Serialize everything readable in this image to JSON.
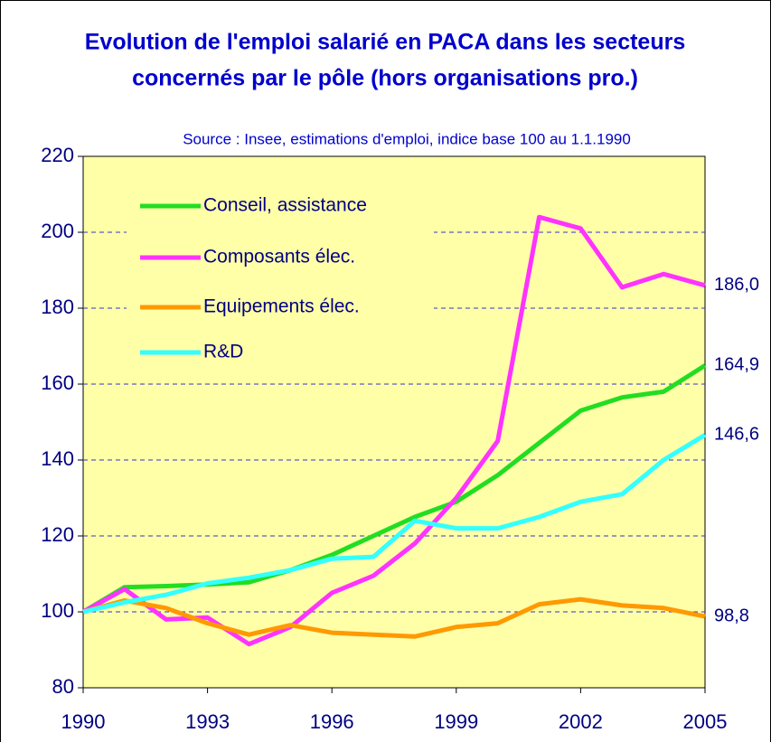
{
  "chart_data": {
    "type": "line",
    "title": [
      "Evolution de l'emploi salarié en PACA dans les secteurs",
      "concernés par le pôle (hors organisations pro.)"
    ],
    "subtitle": "Source : Insee, estimations d'emploi, indice base 100 au 1.1.1990",
    "x": [
      1990,
      1991,
      1992,
      1993,
      1994,
      1995,
      1996,
      1997,
      1998,
      1999,
      2000,
      2001,
      2002,
      2003,
      2004,
      2005
    ],
    "xlim": [
      1990,
      2005
    ],
    "xticks": [
      1990,
      1993,
      1996,
      1999,
      2002,
      2005
    ],
    "ylim": [
      80,
      220
    ],
    "yticks": [
      80,
      100,
      120,
      140,
      160,
      180,
      200,
      220
    ],
    "grid": true,
    "legend": "upper left",
    "series": [
      {
        "name": "Conseil, assistance",
        "color": "#22dd22",
        "values": [
          100,
          106.5,
          106.8,
          107.2,
          107.8,
          111,
          115,
          120,
          125,
          129,
          136,
          144.5,
          153,
          156.5,
          158,
          164.9
        ],
        "value_labels": [
          null,
          null,
          null,
          null,
          null,
          null,
          null,
          null,
          null,
          null,
          null,
          null,
          null,
          null,
          null,
          "164,9"
        ]
      },
      {
        "name": "Composants élec.",
        "color": "#ff33ff",
        "values": [
          100,
          106,
          98,
          98.5,
          91.5,
          96,
          105,
          109.5,
          118,
          130,
          145,
          204,
          201,
          185.5,
          189,
          186.0
        ],
        "value_labels": [
          null,
          null,
          null,
          null,
          null,
          null,
          null,
          null,
          null,
          null,
          null,
          null,
          null,
          null,
          null,
          "186,0"
        ]
      },
      {
        "name": "Equipements élec.",
        "color": "#ff9900",
        "values": [
          100,
          103,
          101,
          97,
          94,
          96.5,
          94.5,
          94,
          93.5,
          96,
          97,
          102,
          103.3,
          101.7,
          101,
          98.8
        ],
        "value_labels": [
          null,
          null,
          null,
          null,
          null,
          null,
          null,
          null,
          null,
          null,
          null,
          null,
          null,
          null,
          null,
          "98,8"
        ]
      },
      {
        "name": "R&D",
        "color": "#33ffff",
        "values": [
          100,
          102.5,
          104.5,
          107.5,
          109,
          111,
          114,
          114.5,
          124,
          122,
          122,
          125,
          129,
          131,
          140,
          146.6
        ],
        "value_labels": [
          null,
          null,
          null,
          null,
          null,
          null,
          null,
          null,
          null,
          null,
          null,
          null,
          null,
          null,
          null,
          "146,6"
        ]
      }
    ]
  }
}
